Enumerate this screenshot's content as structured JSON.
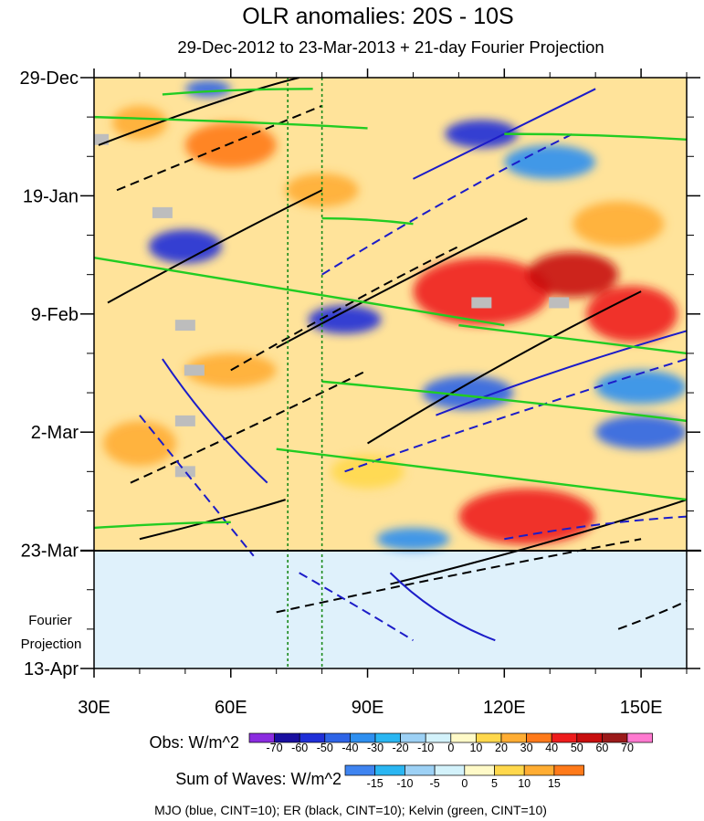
{
  "chart_data": {
    "type": "heatmap",
    "title": "OLR anomalies: 20S - 10S",
    "subtitle": "29-Dec-2012 to 23-Mar-2013 + 21-day Fourier Projection",
    "x_ticks": [
      {
        "value": 30,
        "label": "30E"
      },
      {
        "value": 60,
        "label": "60E"
      },
      {
        "value": 90,
        "label": "90E"
      },
      {
        "value": 120,
        "label": "120E"
      },
      {
        "value": 150,
        "label": "150E"
      }
    ],
    "x_range": [
      30,
      160
    ],
    "y_ticks": [
      {
        "day": 0,
        "label": "29-Dec"
      },
      {
        "day": 21,
        "label": "19-Jan"
      },
      {
        "day": 42,
        "label": "9-Feb"
      },
      {
        "day": 63,
        "label": "2-Mar"
      },
      {
        "day": 84,
        "label": "23-Mar"
      },
      {
        "day": 105,
        "label": "13-Apr"
      }
    ],
    "y_range_days": [
      0,
      105
    ],
    "observation_end_day": 84,
    "projection_label": [
      "Fourier",
      "Projection"
    ],
    "reference_longitudes": [
      72.5,
      80
    ],
    "obs_legend": {
      "title": "Obs: W/m^2",
      "labels": [
        "-70",
        "-60",
        "-50",
        "-40",
        "-30",
        "-20",
        "-10",
        "0",
        "10",
        "20",
        "30",
        "40",
        "50",
        "60",
        "70"
      ],
      "colors": [
        "#8b2ce0",
        "#1a0fa0",
        "#1f2fd8",
        "#2e64e6",
        "#2e8ff0",
        "#2ab6f2",
        "#9dd1f5",
        "#d3f2fb",
        "#fffac8",
        "#ffd84c",
        "#ffad33",
        "#ff7a1a",
        "#ee1c1c",
        "#c80e0e",
        "#9b1a1a",
        "#ff7ad0"
      ]
    },
    "waves_legend": {
      "title": "Sum of Waves: W/m^2",
      "labels": [
        "-15",
        "-10",
        "-5",
        "0",
        "5",
        "10",
        "15"
      ],
      "colors": [
        "#3f84f0",
        "#2ab6f2",
        "#9dd1f5",
        "#d3f2fb",
        "#fffac8",
        "#ffd84c",
        "#ffad33",
        "#ff7a1a"
      ]
    },
    "footnote": "MJO (blue, CINT=10); ER (black, CINT=10); Kelvin (green, CINT=10)",
    "anomaly_features": [
      {
        "lon": 55,
        "day": 2,
        "rx": 5,
        "ry": 1.5,
        "value": -50
      },
      {
        "lon": 115,
        "day": 10,
        "rx": 8,
        "ry": 2.5,
        "value": -60
      },
      {
        "lon": 130,
        "day": 15,
        "rx": 10,
        "ry": 3,
        "value": -40
      },
      {
        "lon": 50,
        "day": 30,
        "rx": 8,
        "ry": 3,
        "value": -55
      },
      {
        "lon": 85,
        "day": 43,
        "rx": 8,
        "ry": 2.5,
        "value": -55
      },
      {
        "lon": 112,
        "day": 56,
        "rx": 10,
        "ry": 3,
        "value": -45
      },
      {
        "lon": 150,
        "day": 55,
        "rx": 10,
        "ry": 3,
        "value": -40
      },
      {
        "lon": 150,
        "day": 63,
        "rx": 10,
        "ry": 3,
        "value": -50
      },
      {
        "lon": 100,
        "day": 82,
        "rx": 8,
        "ry": 2,
        "value": -40
      },
      {
        "lon": 60,
        "day": 12,
        "rx": 10,
        "ry": 4,
        "value": 30
      },
      {
        "lon": 40,
        "day": 8,
        "rx": 6,
        "ry": 3,
        "value": 20
      },
      {
        "lon": 80,
        "day": 20,
        "rx": 8,
        "ry": 3,
        "value": 20
      },
      {
        "lon": 115,
        "day": 38,
        "rx": 15,
        "ry": 6,
        "value": 45
      },
      {
        "lon": 135,
        "day": 35,
        "rx": 10,
        "ry": 4,
        "value": 55
      },
      {
        "lon": 148,
        "day": 42,
        "rx": 10,
        "ry": 5,
        "value": 45
      },
      {
        "lon": 60,
        "day": 52,
        "rx": 10,
        "ry": 3,
        "value": 20
      },
      {
        "lon": 40,
        "day": 65,
        "rx": 8,
        "ry": 4,
        "value": 25
      },
      {
        "lon": 125,
        "day": 78,
        "rx": 15,
        "ry": 5,
        "value": 45
      },
      {
        "lon": 90,
        "day": 70,
        "rx": 8,
        "ry": 3,
        "value": 15
      },
      {
        "lon": 145,
        "day": 26,
        "rx": 10,
        "ry": 4,
        "value": 25
      }
    ],
    "wave_contours": [
      {
        "wave": "ER",
        "color": "#000000",
        "dashed": false,
        "points": [
          [
            31,
            12
          ],
          [
            60,
            3
          ],
          [
            75,
            0
          ]
        ]
      },
      {
        "wave": "ER",
        "color": "#000000",
        "dashed": true,
        "points": [
          [
            35,
            20
          ],
          [
            65,
            10
          ],
          [
            80,
            5
          ]
        ]
      },
      {
        "wave": "ER",
        "color": "#000000",
        "dashed": false,
        "points": [
          [
            33,
            40
          ],
          [
            60,
            28
          ],
          [
            80,
            20
          ]
        ]
      },
      {
        "wave": "ER",
        "color": "#000000",
        "dashed": true,
        "points": [
          [
            60,
            52
          ],
          [
            90,
            38
          ],
          [
            110,
            30
          ]
        ]
      },
      {
        "wave": "ER",
        "color": "#000000",
        "dashed": false,
        "points": [
          [
            70,
            48
          ],
          [
            100,
            35
          ],
          [
            125,
            25
          ]
        ]
      },
      {
        "wave": "ER",
        "color": "#000000",
        "dashed": false,
        "points": [
          [
            90,
            65
          ],
          [
            120,
            50
          ],
          [
            150,
            38
          ]
        ]
      },
      {
        "wave": "ER",
        "color": "#000000",
        "dashed": true,
        "points": [
          [
            38,
            72
          ],
          [
            65,
            62
          ],
          [
            90,
            52
          ]
        ]
      },
      {
        "wave": "ER",
        "color": "#000000",
        "dashed": false,
        "points": [
          [
            40,
            82
          ],
          [
            60,
            78
          ],
          [
            72,
            75
          ]
        ]
      },
      {
        "wave": "ER",
        "color": "#000000",
        "dashed": true,
        "points": [
          [
            70,
            95
          ],
          [
            110,
            88
          ],
          [
            150,
            82
          ]
        ]
      },
      {
        "wave": "ER",
        "color": "#000000",
        "dashed": false,
        "points": [
          [
            95,
            90
          ],
          [
            130,
            83
          ],
          [
            160,
            75
          ]
        ]
      },
      {
        "wave": "ER",
        "color": "#000000",
        "dashed": true,
        "points": [
          [
            145,
            98
          ],
          [
            155,
            95
          ],
          [
            160,
            93
          ]
        ]
      },
      {
        "wave": "MJO",
        "color": "#1c1cc8",
        "dashed": false,
        "points": [
          [
            45,
            50
          ],
          [
            55,
            62
          ],
          [
            68,
            72
          ]
        ]
      },
      {
        "wave": "MJO",
        "color": "#1c1cc8",
        "dashed": true,
        "points": [
          [
            40,
            60
          ],
          [
            55,
            75
          ],
          [
            65,
            85
          ]
        ]
      },
      {
        "wave": "MJO",
        "color": "#1c1cc8",
        "dashed": false,
        "points": [
          [
            100,
            18
          ],
          [
            125,
            8
          ],
          [
            140,
            2
          ]
        ]
      },
      {
        "wave": "MJO",
        "color": "#1c1cc8",
        "dashed": true,
        "points": [
          [
            80,
            35
          ],
          [
            110,
            20
          ],
          [
            135,
            10
          ]
        ]
      },
      {
        "wave": "MJO",
        "color": "#1c1cc8",
        "dashed": false,
        "points": [
          [
            105,
            60
          ],
          [
            130,
            52
          ],
          [
            160,
            45
          ]
        ]
      },
      {
        "wave": "MJO",
        "color": "#1c1cc8",
        "dashed": true,
        "points": [
          [
            85,
            70
          ],
          [
            120,
            60
          ],
          [
            160,
            50
          ]
        ]
      },
      {
        "wave": "MJO",
        "color": "#1c1cc8",
        "dashed": false,
        "points": [
          [
            95,
            88
          ],
          [
            105,
            96
          ],
          [
            118,
            100
          ]
        ]
      },
      {
        "wave": "MJO",
        "color": "#1c1cc8",
        "dashed": true,
        "points": [
          [
            75,
            88
          ],
          [
            90,
            95
          ],
          [
            100,
            100
          ]
        ]
      },
      {
        "wave": "MJO",
        "color": "#1c1cc8",
        "dashed": true,
        "points": [
          [
            120,
            82
          ],
          [
            140,
            79
          ],
          [
            160,
            78
          ]
        ]
      },
      {
        "wave": "Kelvin",
        "color": "#22cc22",
        "dashed": false,
        "points": [
          [
            30,
            32
          ],
          [
            90,
            40
          ],
          [
            120,
            44
          ]
        ]
      },
      {
        "wave": "Kelvin",
        "color": "#22cc22",
        "dashed": false,
        "points": [
          [
            30,
            7
          ],
          [
            70,
            8
          ],
          [
            90,
            9
          ]
        ]
      },
      {
        "wave": "Kelvin",
        "color": "#22cc22",
        "dashed": false,
        "points": [
          [
            45,
            3
          ],
          [
            60,
            2
          ],
          [
            78,
            2
          ]
        ]
      },
      {
        "wave": "Kelvin",
        "color": "#22cc22",
        "dashed": false,
        "points": [
          [
            80,
            54
          ],
          [
            120,
            57
          ],
          [
            160,
            61
          ]
        ]
      },
      {
        "wave": "Kelvin",
        "color": "#22cc22",
        "dashed": false,
        "points": [
          [
            70,
            66
          ],
          [
            110,
            70
          ],
          [
            160,
            75
          ]
        ]
      },
      {
        "wave": "Kelvin",
        "color": "#22cc22",
        "dashed": false,
        "points": [
          [
            110,
            44
          ],
          [
            140,
            47
          ],
          [
            160,
            49
          ]
        ]
      },
      {
        "wave": "Kelvin",
        "color": "#22cc22",
        "dashed": false,
        "points": [
          [
            30,
            80
          ],
          [
            50,
            79
          ],
          [
            60,
            79
          ]
        ]
      },
      {
        "wave": "Kelvin",
        "color": "#22cc22",
        "dashed": false,
        "points": [
          [
            120,
            10
          ],
          [
            140,
            10
          ],
          [
            160,
            11
          ]
        ]
      },
      {
        "wave": "Kelvin",
        "color": "#22cc22",
        "dashed": false,
        "points": [
          [
            80,
            25
          ],
          [
            90,
            25
          ],
          [
            100,
            26
          ]
        ]
      }
    ],
    "missing_data_boxes": [
      {
        "lon": 31,
        "day": 11
      },
      {
        "lon": 45,
        "day": 24
      },
      {
        "lon": 50,
        "day": 44
      },
      {
        "lon": 52,
        "day": 52
      },
      {
        "lon": 50,
        "day": 61
      },
      {
        "lon": 50,
        "day": 70
      },
      {
        "lon": 115,
        "day": 40
      },
      {
        "lon": 132,
        "day": 40
      }
    ]
  }
}
